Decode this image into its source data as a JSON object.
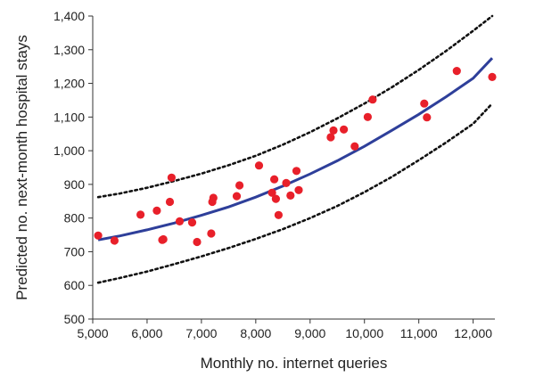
{
  "chart_data": {
    "type": "scatter",
    "title": "",
    "xlabel": "Monthly no. internet queries",
    "ylabel": "Predicted no. next-month hospital stays",
    "xlim": [
      5000,
      12400
    ],
    "ylim": [
      500,
      1400
    ],
    "x_ticks": [
      5000,
      6000,
      7000,
      8000,
      9000,
      10000,
      11000,
      12000
    ],
    "y_ticks": [
      500,
      600,
      700,
      800,
      900,
      1000,
      1100,
      1200,
      1300,
      1400
    ],
    "x_tick_labels": [
      "5,000",
      "6,000",
      "7,000",
      "8,000",
      "9,000",
      "10,000",
      "11,000",
      "12,000"
    ],
    "y_tick_labels": [
      "500",
      "600",
      "700",
      "800",
      "900",
      "1,000",
      "1,100",
      "1,200",
      "1,300",
      "1,400"
    ],
    "grid": false,
    "legend": "none",
    "point_color": "#e8202a",
    "fit_color": "#2e3f9a",
    "band_color": "#111111",
    "series": [
      {
        "kind": "points",
        "x": [
          5100,
          5400,
          5880,
          6180,
          6280,
          6300,
          6420,
          6450,
          6600,
          6830,
          6920,
          7180,
          7200,
          7220,
          7650,
          7700,
          8060,
          8300,
          8340,
          8370,
          8420,
          8560,
          8640,
          8750,
          8790,
          9380,
          9430,
          9620,
          9820,
          10060,
          10150,
          11100,
          11150,
          11700,
          12350
        ],
        "y": [
          748,
          733,
          810,
          822,
          735,
          737,
          848,
          920,
          790,
          787,
          729,
          754,
          848,
          860,
          865,
          897,
          956,
          875,
          915,
          857,
          809,
          904,
          867,
          940,
          883,
          1040,
          1060,
          1063,
          1013,
          1100,
          1152,
          1140,
          1099,
          1237,
          1219
        ]
      },
      {
        "kind": "fit",
        "x": [
          5100,
          5500,
          6000,
          6500,
          7000,
          7500,
          8000,
          8500,
          9000,
          9500,
          10000,
          10500,
          11000,
          11500,
          12000,
          12350
        ],
        "y": [
          735,
          747,
          765,
          785,
          808,
          833,
          862,
          895,
          931,
          970,
          1013,
          1060,
          1108,
          1160,
          1215,
          1275
        ]
      },
      {
        "kind": "upper-band",
        "x": [
          5100,
          5500,
          6000,
          6500,
          7000,
          7500,
          8000,
          8500,
          9000,
          9500,
          10000,
          10500,
          11000,
          11500,
          12000,
          12350
        ],
        "y": [
          862,
          873,
          890,
          910,
          932,
          957,
          985,
          1018,
          1055,
          1096,
          1140,
          1188,
          1240,
          1296,
          1356,
          1400
        ]
      },
      {
        "kind": "lower-band",
        "x": [
          5100,
          5500,
          6000,
          6500,
          7000,
          7500,
          8000,
          8500,
          9000,
          9500,
          10000,
          10500,
          11000,
          11500,
          12000,
          12350
        ],
        "y": [
          608,
          622,
          641,
          663,
          686,
          711,
          738,
          767,
          800,
          836,
          877,
          922,
          972,
          1024,
          1080,
          1140
        ]
      }
    ]
  }
}
